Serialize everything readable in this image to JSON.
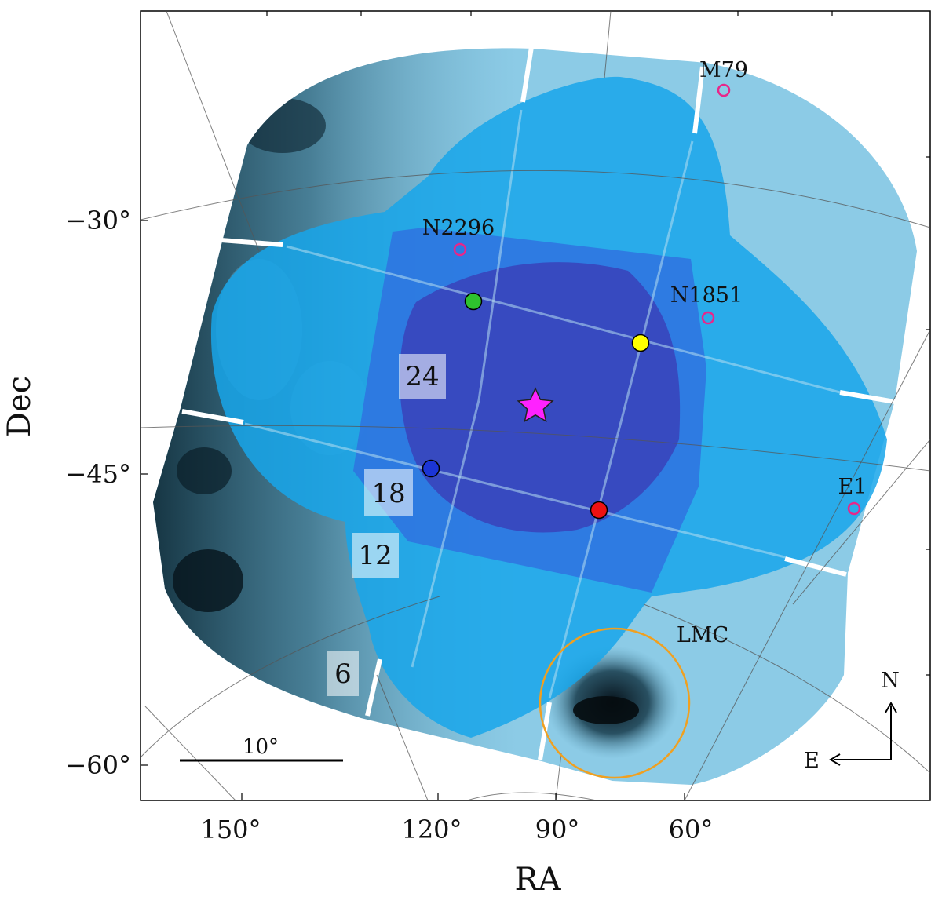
{
  "axes": {
    "xlabel": "RA",
    "ylabel": "Dec",
    "ra_ticks": [
      "150°",
      "120°",
      "90°",
      "60°"
    ],
    "dec_ticks": [
      "−30°",
      "−45°",
      "−60°"
    ]
  },
  "regions": [
    {
      "label": "24",
      "color": "#3a3fb8"
    },
    {
      "label": "18",
      "color": "#2f6fe0"
    },
    {
      "label": "12",
      "color": "#17a6ea"
    },
    {
      "label": "6",
      "color": "#8ccbe6"
    }
  ],
  "sources": [
    {
      "label": "M79",
      "color": "#e8268a"
    },
    {
      "label": "N2296",
      "color": "#e8268a"
    },
    {
      "label": "N1851",
      "color": "#e8268a"
    },
    {
      "label": "E1",
      "color": "#e8268a"
    }
  ],
  "lmc": {
    "label": "LMC",
    "color": "#f0a020"
  },
  "field_markers": [
    {
      "name": "green",
      "color": "#2ec22e"
    },
    {
      "name": "yellow",
      "color": "#ffff00"
    },
    {
      "name": "blue",
      "color": "#1b35d6"
    },
    {
      "name": "red",
      "color": "#ee1111"
    }
  ],
  "center_star": {
    "color": "#ff22ff"
  },
  "scale_bar": {
    "label": "10°"
  },
  "compass": {
    "north": "N",
    "east": "E"
  }
}
